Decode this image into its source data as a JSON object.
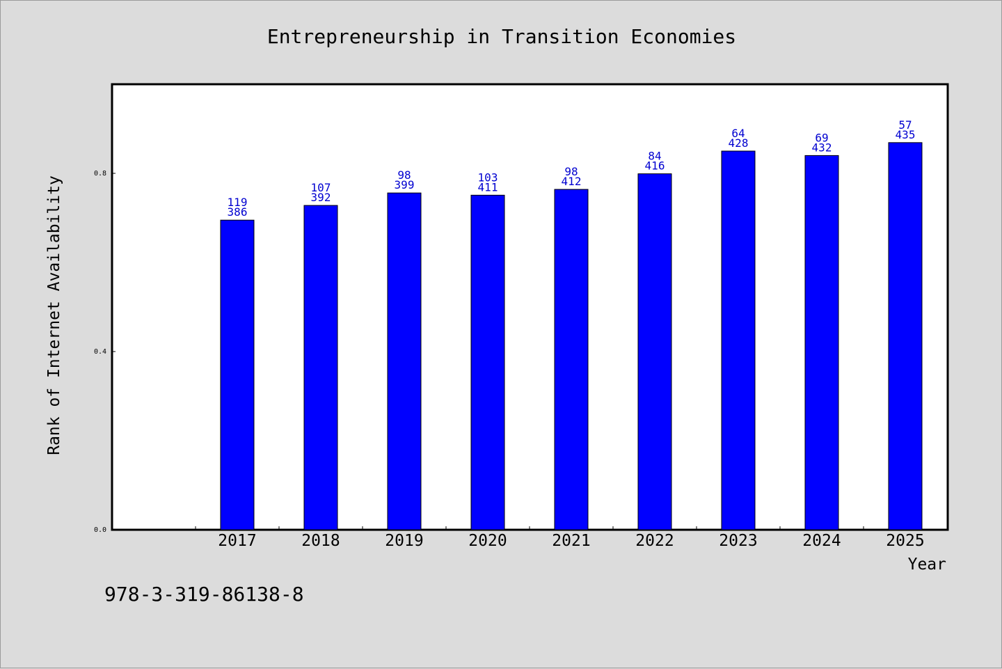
{
  "chart_data": {
    "type": "bar",
    "title": "Entrepreneurship in Transition Economies",
    "xlabel": "Year",
    "ylabel": "Rank of Internet Availability",
    "categories": [
      "2017",
      "2018",
      "2019",
      "2020",
      "2021",
      "2022",
      "2023",
      "2024",
      "2025"
    ],
    "values": [
      0.695,
      0.728,
      0.756,
      0.751,
      0.764,
      0.799,
      0.85,
      0.84,
      0.869
    ],
    "labels_top": [
      "119",
      "107",
      "98",
      "103",
      "98",
      "84",
      "64",
      "69",
      "57"
    ],
    "labels_bottom": [
      "386",
      "392",
      "399",
      "411",
      "412",
      "416",
      "428",
      "432",
      "435"
    ],
    "ylim": [
      0,
      1.0
    ],
    "yticks": [
      "0.0",
      "0.4",
      "0.8"
    ],
    "grid": false,
    "bar_color": "#0000ff",
    "label_color": "#0000d0",
    "background": "#dcdcdc"
  },
  "footer": {
    "isbn": "978-3-319-86138-8"
  }
}
